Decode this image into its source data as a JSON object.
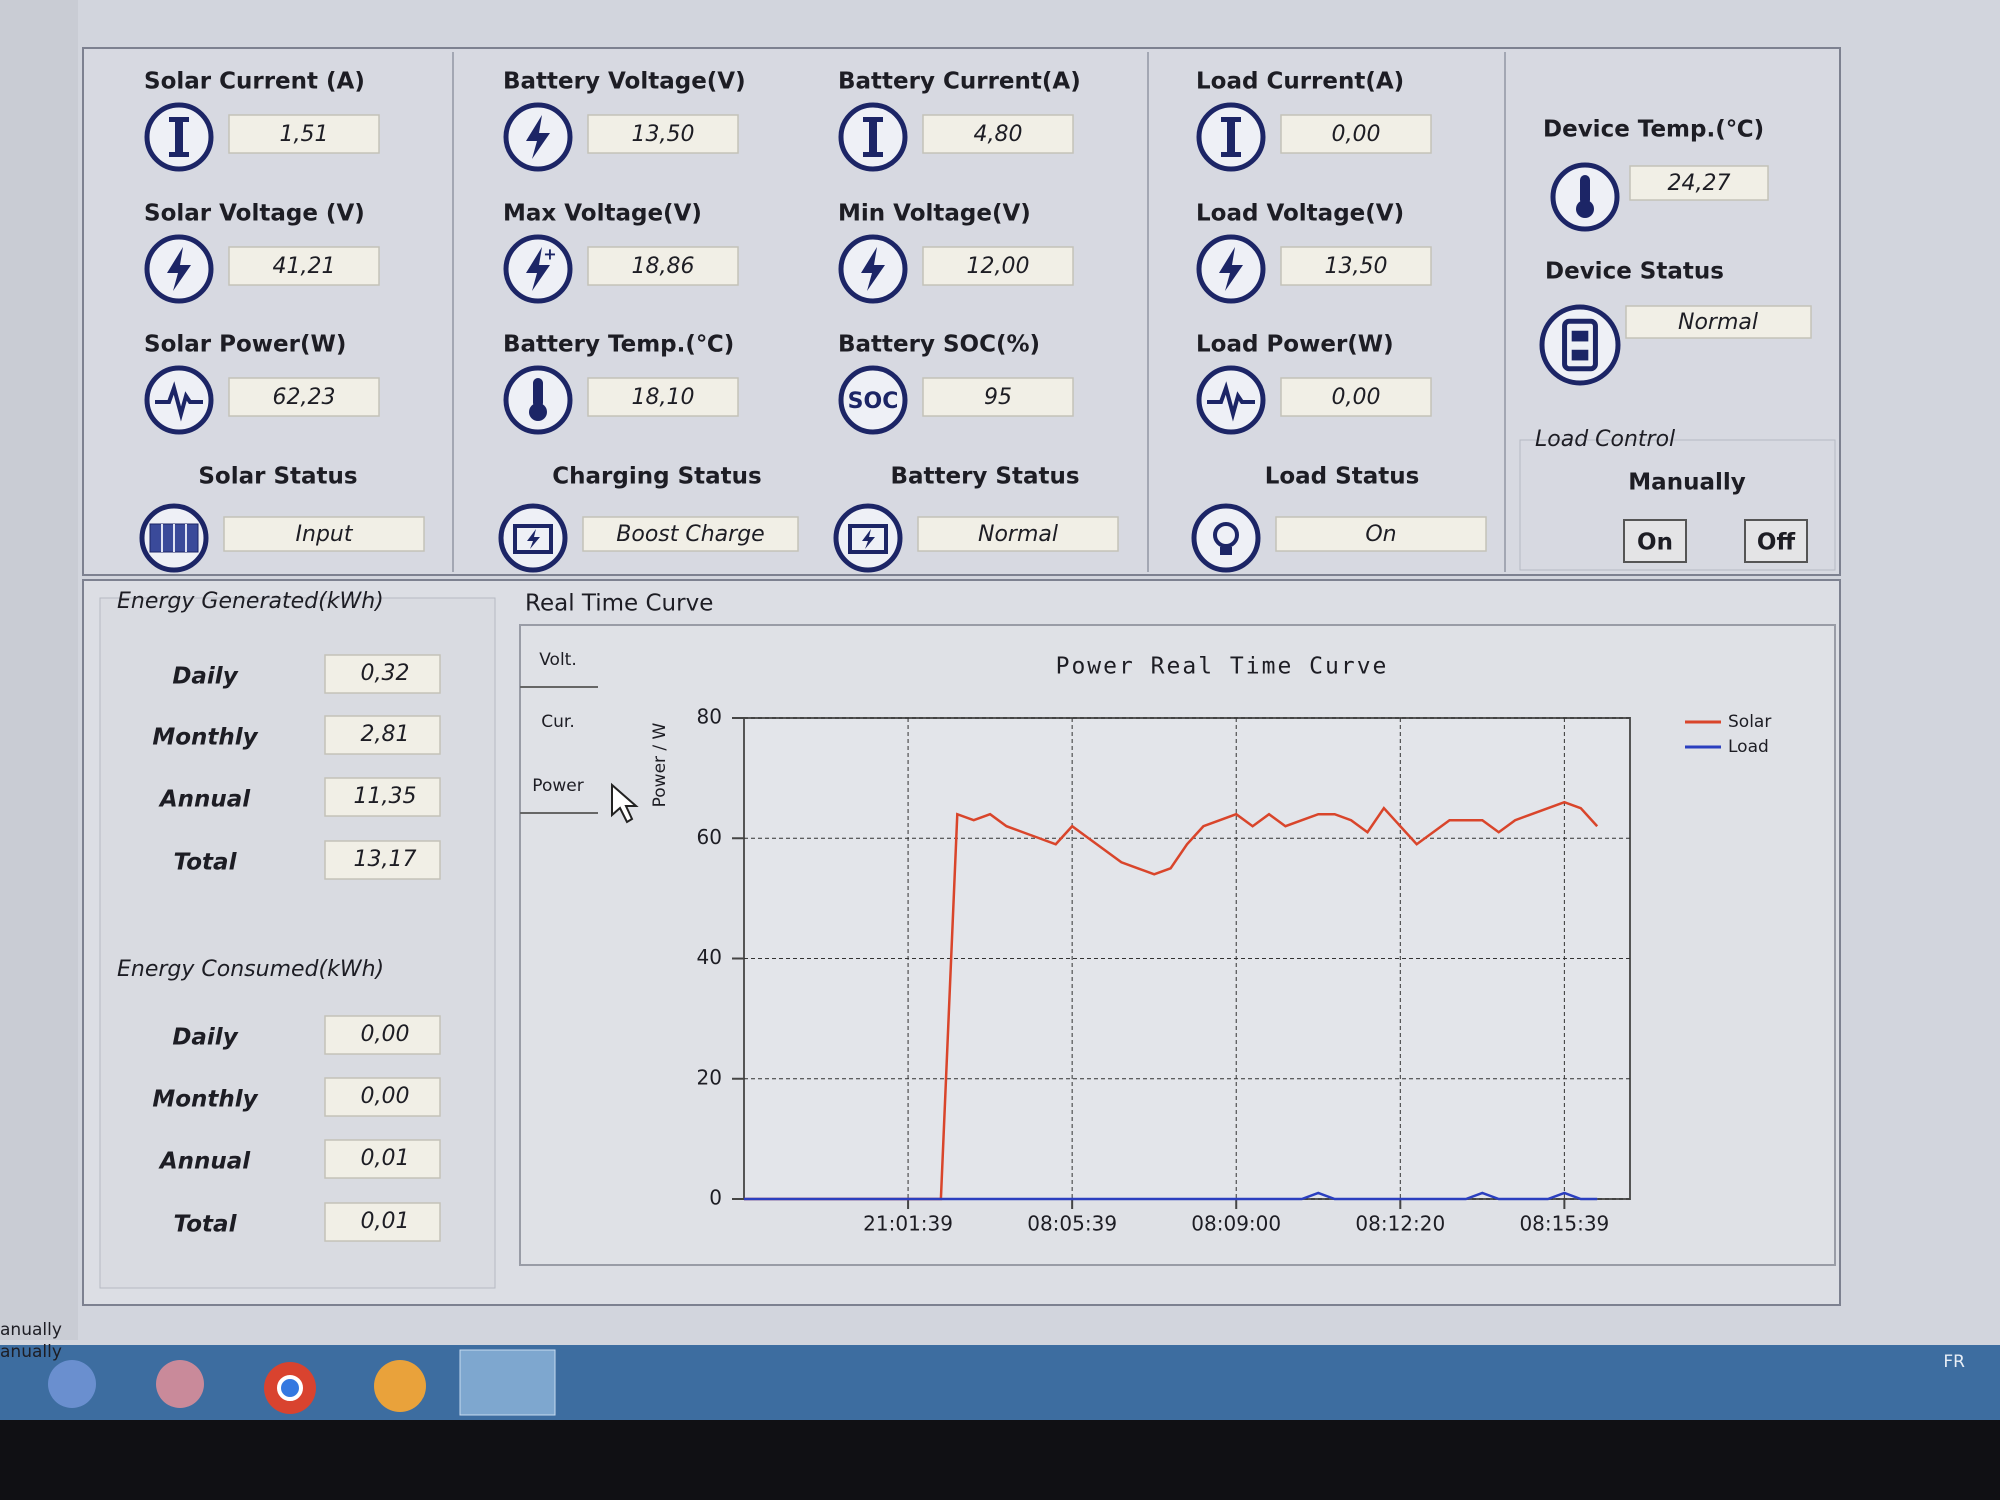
{
  "columns": [
    {
      "fields": [
        {
          "label": "Solar Current (A)",
          "value": "1,51"
        },
        {
          "label": "Solar Voltage (V)",
          "value": "41,21"
        },
        {
          "label": "Solar Power(W)",
          "value": "62,23"
        }
      ],
      "status": {
        "label": "Solar Status",
        "value": "Input"
      }
    },
    {
      "fields": [
        {
          "label": "Battery Voltage(V)",
          "value": "13,50"
        },
        {
          "label": "Max Voltage(V)",
          "value": "18,86"
        },
        {
          "label": "Battery Temp.(℃)",
          "value": "18,10"
        }
      ],
      "status": {
        "label": "Charging Status",
        "value": "Boost Charge"
      }
    },
    {
      "fields": [
        {
          "label": "Battery Current(A)",
          "value": "4,80"
        },
        {
          "label": "Min Voltage(V)",
          "value": "12,00"
        },
        {
          "label": "Battery SOC(%)",
          "value": "95",
          "icon_text": "SOC"
        }
      ],
      "status": {
        "label": "Battery Status",
        "value": "Normal"
      }
    },
    {
      "fields": [
        {
          "label": "Load Current(A)",
          "value": "0,00"
        },
        {
          "label": "Load Voltage(V)",
          "value": "13,50"
        },
        {
          "label": "Load Power(W)",
          "value": "0,00"
        }
      ],
      "status": {
        "label": "Load Status",
        "value": "On"
      }
    },
    {
      "fields": [
        {
          "label": "Device Temp.(℃)",
          "value": "24,27"
        },
        {
          "label": "Device Status",
          "value": "Normal"
        }
      ]
    }
  ],
  "load_control": {
    "title": "Load Control",
    "mode": "Manually",
    "buttons": [
      "On",
      "Off"
    ]
  },
  "energy_generated": {
    "title": "Energy Generated(kWh)",
    "rows": [
      [
        "Daily",
        "0,32"
      ],
      [
        "Monthly",
        "2,81"
      ],
      [
        "Annual",
        "11,35"
      ],
      [
        "Total",
        "13,17"
      ]
    ]
  },
  "energy_consumed": {
    "title": "Energy Consumed(kWh)",
    "rows": [
      [
        "Daily",
        "0,00"
      ],
      [
        "Monthly",
        "0,00"
      ],
      [
        "Annual",
        "0,01"
      ],
      [
        "Total",
        "0,01"
      ]
    ]
  },
  "curve_panel": {
    "title": "Real Time Curve",
    "tabs": [
      "Volt.",
      "Cur.",
      "Power"
    ]
  },
  "chart_data": {
    "type": "line",
    "title": "Power Real Time Curve",
    "y_label": "Power / W",
    "categories": [
      null,
      null,
      null,
      null,
      null,
      null,
      null,
      null,
      null,
      null,
      "21:01:39",
      null,
      null,
      null,
      null,
      null,
      null,
      null,
      null,
      null,
      "08:05:39",
      null,
      null,
      null,
      null,
      null,
      null,
      null,
      null,
      null,
      "08:09:00",
      null,
      null,
      null,
      null,
      null,
      null,
      null,
      null,
      null,
      "08:12:20",
      null,
      null,
      null,
      null,
      null,
      null,
      null,
      null,
      null,
      "08:15:39",
      null,
      null
    ],
    "series": [
      {
        "name": "Solar",
        "color": "#d9452b",
        "values": [
          0,
          0,
          0,
          0,
          0,
          0,
          0,
          0,
          0,
          0,
          0,
          0,
          0,
          64,
          63,
          64,
          62,
          61,
          60,
          59,
          62,
          60,
          58,
          56,
          55,
          54,
          55,
          59,
          62,
          63,
          64,
          62,
          64,
          62,
          63,
          64,
          64,
          63,
          61,
          65,
          62,
          59,
          61,
          63,
          63,
          63,
          61,
          63,
          64,
          65,
          66,
          65,
          62
        ]
      },
      {
        "name": "Load",
        "color": "#2b3fbf",
        "values": [
          0,
          0,
          0,
          0,
          0,
          0,
          0,
          0,
          0,
          0,
          0,
          0,
          0,
          0,
          0,
          0,
          0,
          0,
          0,
          0,
          0,
          0,
          0,
          0,
          0,
          0,
          0,
          0,
          0,
          0,
          0,
          0,
          0,
          0,
          0,
          1,
          0,
          0,
          0,
          0,
          0,
          0,
          0,
          0,
          0,
          1,
          0,
          0,
          0,
          0,
          1,
          0,
          0
        ]
      }
    ],
    "ylim": [
      0,
      80
    ],
    "yticks": [
      0,
      20,
      40,
      60,
      80
    ],
    "grid": true,
    "legend": "right"
  },
  "side_fragments": [
    "anually",
    "anually"
  ],
  "taskbar": {
    "language": "FR"
  }
}
